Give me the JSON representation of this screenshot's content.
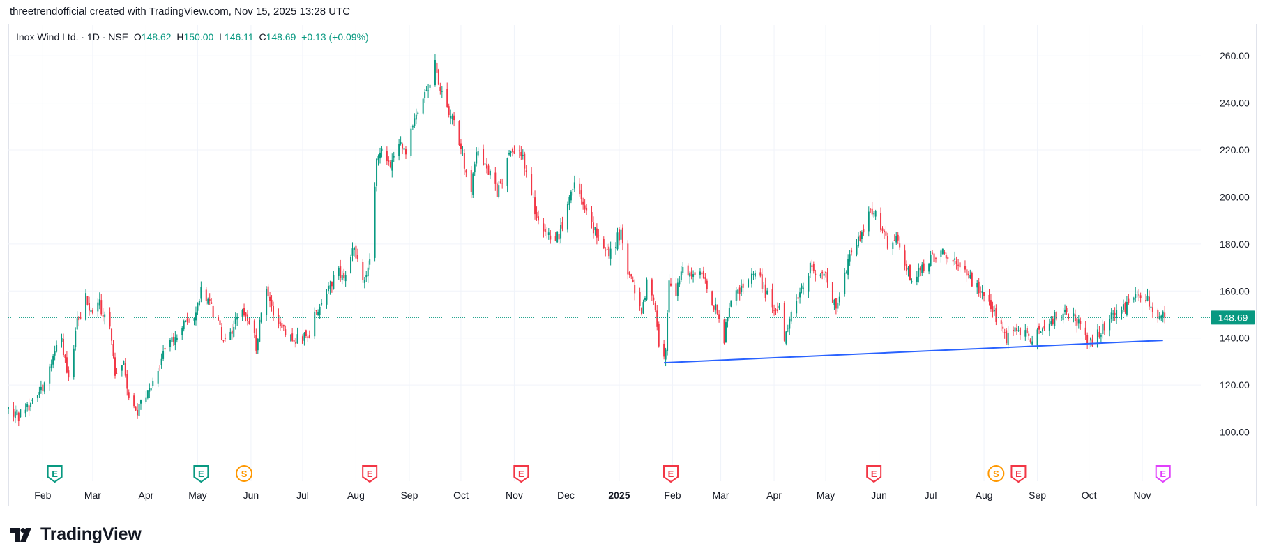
{
  "header": {
    "attribution": "threetrendofficial created with TradingView.com, Nov 15, 2025 13:28 UTC"
  },
  "legend": {
    "symbol": "Inox Wind Ltd. · 1D · NSE",
    "o_label": "O",
    "o_value": "148.62",
    "h_label": "H",
    "h_value": "150.00",
    "l_label": "L",
    "l_value": "146.11",
    "c_label": "C",
    "c_value": "148.69",
    "change": "+0.13 (+0.09%)"
  },
  "footer": {
    "brand": "TradingView"
  },
  "colors": {
    "up": "#089981",
    "down": "#f23645",
    "trendline": "#2962ff",
    "grid": "#f0f3fa",
    "earnings_future": "#e040fb",
    "split": "#ff9800"
  },
  "chart_data": {
    "type": "candlestick",
    "title": "Inox Wind Ltd. · 1D · NSE",
    "ylim": [
      88,
      266
    ],
    "y_ticks": [
      100,
      120,
      140,
      160,
      180,
      200,
      220,
      240,
      260
    ],
    "y_tick_labels": [
      "100.00",
      "120.00",
      "140.00",
      "160.00",
      "180.00",
      "200.00",
      "220.00",
      "240.00",
      "260.00"
    ],
    "x_start": "2024-01-12",
    "x_end": "2025-12-05",
    "x_ticks": [
      {
        "label": "Feb",
        "date": "2024-02-01",
        "bold": false
      },
      {
        "label": "Mar",
        "date": "2024-03-01",
        "bold": false
      },
      {
        "label": "Apr",
        "date": "2024-04-01",
        "bold": false
      },
      {
        "label": "May",
        "date": "2024-05-01",
        "bold": false
      },
      {
        "label": "Jun",
        "date": "2024-06-01",
        "bold": false
      },
      {
        "label": "Jul",
        "date": "2024-07-01",
        "bold": false
      },
      {
        "label": "Aug",
        "date": "2024-08-01",
        "bold": false
      },
      {
        "label": "Sep",
        "date": "2024-09-01",
        "bold": false
      },
      {
        "label": "Oct",
        "date": "2024-10-01",
        "bold": false
      },
      {
        "label": "Nov",
        "date": "2024-11-01",
        "bold": false
      },
      {
        "label": "Dec",
        "date": "2024-12-01",
        "bold": false
      },
      {
        "label": "2025",
        "date": "2025-01-01",
        "bold": true
      },
      {
        "label": "Feb",
        "date": "2025-02-01",
        "bold": false
      },
      {
        "label": "Mar",
        "date": "2025-03-01",
        "bold": false
      },
      {
        "label": "Apr",
        "date": "2025-04-01",
        "bold": false
      },
      {
        "label": "May",
        "date": "2025-05-01",
        "bold": false
      },
      {
        "label": "Jun",
        "date": "2025-06-01",
        "bold": false
      },
      {
        "label": "Jul",
        "date": "2025-07-01",
        "bold": false
      },
      {
        "label": "Aug",
        "date": "2025-08-01",
        "bold": false
      },
      {
        "label": "Sep",
        "date": "2025-09-01",
        "bold": false
      },
      {
        "label": "Oct",
        "date": "2025-10-01",
        "bold": false
      },
      {
        "label": "Nov",
        "date": "2025-11-01",
        "bold": false
      }
    ],
    "last_price": 148.69,
    "last_price_label": "148.69",
    "trendline": {
      "start": {
        "date": "2025-01-27",
        "value": 129.5
      },
      "end": {
        "date": "2025-11-13",
        "value": 139
      }
    },
    "close_path": [
      [
        "2024-01-12",
        110
      ],
      [
        "2024-01-18",
        107
      ],
      [
        "2024-01-25",
        112
      ],
      [
        "2024-02-01",
        120
      ],
      [
        "2024-02-07",
        133
      ],
      [
        "2024-02-12",
        138
      ],
      [
        "2024-02-16",
        123
      ],
      [
        "2024-02-21",
        147
      ],
      [
        "2024-02-26",
        157
      ],
      [
        "2024-02-29",
        150
      ],
      [
        "2024-03-05",
        155
      ],
      [
        "2024-03-08",
        148
      ],
      [
        "2024-03-11",
        144
      ],
      [
        "2024-03-14",
        125
      ],
      [
        "2024-03-19",
        128
      ],
      [
        "2024-03-22",
        116
      ],
      [
        "2024-03-27",
        109
      ],
      [
        "2024-04-02",
        117
      ],
      [
        "2024-04-08",
        128
      ],
      [
        "2024-04-15",
        138
      ],
      [
        "2024-04-22",
        145
      ],
      [
        "2024-04-29",
        150
      ],
      [
        "2024-05-03",
        160
      ],
      [
        "2024-05-08",
        155
      ],
      [
        "2024-05-13",
        145
      ],
      [
        "2024-05-17",
        138
      ],
      [
        "2024-05-23",
        147
      ],
      [
        "2024-05-28",
        152
      ],
      [
        "2024-06-03",
        143
      ],
      [
        "2024-06-04",
        135
      ],
      [
        "2024-06-06",
        148
      ],
      [
        "2024-06-10",
        160
      ],
      [
        "2024-06-14",
        150
      ],
      [
        "2024-06-19",
        145
      ],
      [
        "2024-06-24",
        140
      ],
      [
        "2024-07-01",
        140
      ],
      [
        "2024-07-05",
        142
      ],
      [
        "2024-07-08",
        150
      ],
      [
        "2024-07-15",
        160
      ],
      [
        "2024-07-22",
        168
      ],
      [
        "2024-07-26",
        166
      ],
      [
        "2024-07-30",
        180
      ],
      [
        "2024-08-05",
        163
      ],
      [
        "2024-08-09",
        172
      ],
      [
        "2024-08-13",
        215
      ],
      [
        "2024-08-16",
        220
      ],
      [
        "2024-08-21",
        212
      ],
      [
        "2024-08-26",
        222
      ],
      [
        "2024-08-30",
        218
      ],
      [
        "2024-09-04",
        235
      ],
      [
        "2024-09-09",
        242
      ],
      [
        "2024-09-13",
        248
      ],
      [
        "2024-09-16",
        256
      ],
      [
        "2024-09-20",
        243
      ],
      [
        "2024-09-25",
        235
      ],
      [
        "2024-10-01",
        222
      ],
      [
        "2024-10-04",
        210
      ],
      [
        "2024-10-07",
        203
      ],
      [
        "2024-10-10",
        218
      ],
      [
        "2024-10-16",
        212
      ],
      [
        "2024-10-22",
        202
      ],
      [
        "2024-10-25",
        208
      ],
      [
        "2024-10-30",
        220
      ],
      [
        "2024-11-05",
        219
      ],
      [
        "2024-11-08",
        210
      ],
      [
        "2024-11-13",
        195
      ],
      [
        "2024-11-18",
        186
      ],
      [
        "2024-11-22",
        182
      ],
      [
        "2024-11-27",
        184
      ],
      [
        "2024-12-02",
        195
      ],
      [
        "2024-12-06",
        205
      ],
      [
        "2024-12-10",
        200
      ],
      [
        "2024-12-16",
        188
      ],
      [
        "2024-12-20",
        182
      ],
      [
        "2024-12-26",
        176
      ],
      [
        "2025-01-02",
        185
      ],
      [
        "2025-01-06",
        168
      ],
      [
        "2025-01-10",
        160
      ],
      [
        "2025-01-14",
        150
      ],
      [
        "2025-01-17",
        164
      ],
      [
        "2025-01-21",
        158
      ],
      [
        "2025-01-24",
        138
      ],
      [
        "2025-01-28",
        133
      ],
      [
        "2025-01-30",
        165
      ],
      [
        "2025-02-03",
        160
      ],
      [
        "2025-02-07",
        170
      ],
      [
        "2025-02-12",
        165
      ],
      [
        "2025-02-17",
        168
      ],
      [
        "2025-02-21",
        162
      ],
      [
        "2025-02-27",
        150
      ],
      [
        "2025-03-03",
        140
      ],
      [
        "2025-03-06",
        155
      ],
      [
        "2025-03-12",
        160
      ],
      [
        "2025-03-17",
        165
      ],
      [
        "2025-03-21",
        170
      ],
      [
        "2025-03-26",
        160
      ],
      [
        "2025-03-31",
        155
      ],
      [
        "2025-04-04",
        152
      ],
      [
        "2025-04-07",
        140
      ],
      [
        "2025-04-11",
        152
      ],
      [
        "2025-04-16",
        160
      ],
      [
        "2025-04-22",
        170
      ],
      [
        "2025-04-28",
        168
      ],
      [
        "2025-05-02",
        165
      ],
      [
        "2025-05-07",
        152
      ],
      [
        "2025-05-12",
        168
      ],
      [
        "2025-05-16",
        175
      ],
      [
        "2025-05-22",
        185
      ],
      [
        "2025-05-28",
        195
      ],
      [
        "2025-06-02",
        188
      ],
      [
        "2025-06-06",
        180
      ],
      [
        "2025-06-11",
        184
      ],
      [
        "2025-06-16",
        172
      ],
      [
        "2025-06-20",
        165
      ],
      [
        "2025-06-26",
        170
      ],
      [
        "2025-07-01",
        174
      ],
      [
        "2025-07-07",
        176
      ],
      [
        "2025-07-14",
        175
      ],
      [
        "2025-07-21",
        170
      ],
      [
        "2025-07-25",
        163
      ],
      [
        "2025-07-31",
        160
      ],
      [
        "2025-08-05",
        152
      ],
      [
        "2025-08-11",
        145
      ],
      [
        "2025-08-14",
        140
      ],
      [
        "2025-08-20",
        143
      ],
      [
        "2025-08-25",
        142
      ],
      [
        "2025-08-29",
        138
      ],
      [
        "2025-09-04",
        145
      ],
      [
        "2025-09-10",
        148
      ],
      [
        "2025-09-16",
        151
      ],
      [
        "2025-09-22",
        150
      ],
      [
        "2025-09-26",
        145
      ],
      [
        "2025-09-30",
        140
      ],
      [
        "2025-10-03",
        139
      ],
      [
        "2025-10-08",
        143
      ],
      [
        "2025-10-13",
        148
      ],
      [
        "2025-10-17",
        150
      ],
      [
        "2025-10-23",
        154
      ],
      [
        "2025-10-29",
        158
      ],
      [
        "2025-11-03",
        157
      ],
      [
        "2025-11-07",
        152
      ],
      [
        "2025-11-11",
        149
      ],
      [
        "2025-11-14",
        148.69
      ]
    ],
    "event_markers": [
      {
        "type": "earnings",
        "label": "E",
        "date": "2024-02-08",
        "color": "#089981"
      },
      {
        "type": "earnings",
        "label": "E",
        "date": "2024-05-03",
        "color": "#089981"
      },
      {
        "type": "split",
        "label": "S",
        "date": "2024-05-28",
        "color": "#ff9800"
      },
      {
        "type": "earnings",
        "label": "E",
        "date": "2024-08-09",
        "color": "#f23645"
      },
      {
        "type": "earnings",
        "label": "E",
        "date": "2024-11-05",
        "color": "#f23645"
      },
      {
        "type": "earnings",
        "label": "E",
        "date": "2025-01-31",
        "color": "#f23645"
      },
      {
        "type": "earnings",
        "label": "E",
        "date": "2025-05-29",
        "color": "#f23645"
      },
      {
        "type": "split",
        "label": "S",
        "date": "2025-08-08",
        "color": "#ff9800"
      },
      {
        "type": "earnings",
        "label": "E",
        "date": "2025-08-21",
        "color": "#f23645"
      },
      {
        "type": "earnings",
        "label": "E",
        "date": "2025-11-13",
        "color": "#e040fb"
      }
    ]
  }
}
